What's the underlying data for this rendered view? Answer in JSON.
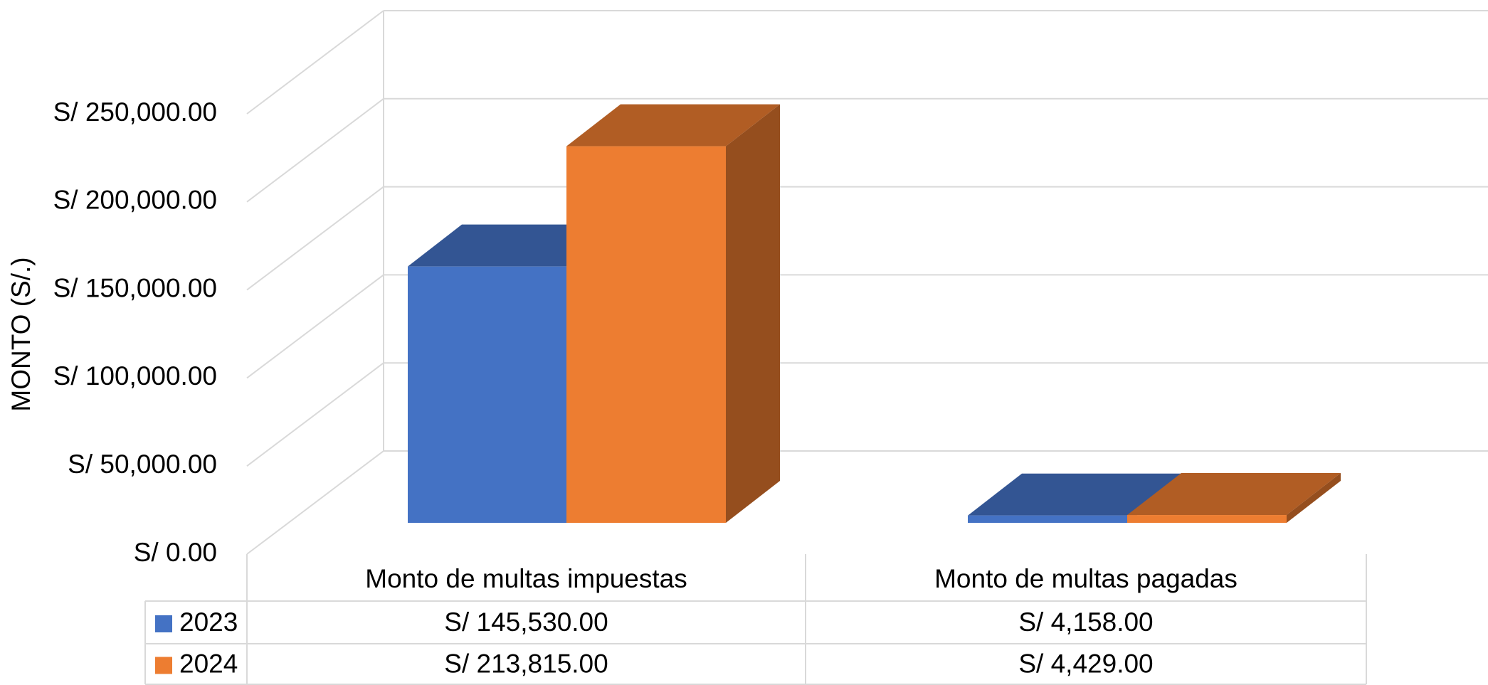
{
  "chart_data": {
    "type": "bar3d",
    "axis_label": "MONTO (S/.)",
    "categories": [
      "Monto de multas impuestas",
      "Monto de multas pagadas"
    ],
    "series": [
      {
        "name": "2023",
        "color": "#4472c4",
        "values": [
          145530,
          4158
        ],
        "value_labels": [
          "S/ 145,530.00",
          "S/ 4,158.00"
        ]
      },
      {
        "name": "2024",
        "color": "#ed7d31",
        "values": [
          213815,
          4429
        ],
        "value_labels": [
          "S/ 213,815.00",
          "S/ 4,429.00"
        ]
      }
    ],
    "ylim": [
      0,
      250000
    ],
    "yticks": [
      {
        "value": 0,
        "label": "S/ 0.00"
      },
      {
        "value": 50000,
        "label": "S/ 50,000.00"
      },
      {
        "value": 100000,
        "label": "S/ 100,000.00"
      },
      {
        "value": 150000,
        "label": "S/ 150,000.00"
      },
      {
        "value": 200000,
        "label": "S/ 200,000.00"
      },
      {
        "value": 250000,
        "label": "S/ 250,000.00"
      }
    ],
    "grid": true,
    "data_table": true
  }
}
